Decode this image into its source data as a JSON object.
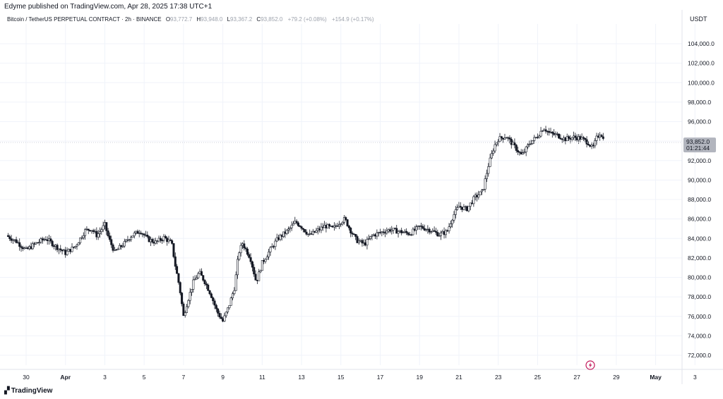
{
  "header": {
    "published": "Edyme published on TradingView.com, Apr 28, 2025 17:38 UTC+1",
    "symbol": "Bitcoin / TetherUS PERPETUAL CONTRACT · 2h · BINANCE",
    "open_label": "O",
    "open": "93,772.7",
    "high_label": "H",
    "high": "93,948.0",
    "low_label": "L",
    "low": "93,367.2",
    "close_label": "C",
    "close": "93,852.0",
    "change": "+79.2 (+0.08%)",
    "change2": "+154.9 (+0.17%)",
    "currency": "USDT"
  },
  "price_tag": {
    "price": "93,852.0",
    "countdown": "01:21:44"
  },
  "footer": {
    "brand": "TradingView",
    "logo_icon": "tradingview-logo-icon"
  },
  "colors": {
    "candle": "#131722",
    "grid": "#f0f3fa",
    "tag_bg": "#b2b5be",
    "lightning": "#c2185b"
  },
  "chart_data": {
    "type": "candlestick",
    "interval": "2h",
    "y_ticks": [
      "72,000.0",
      "74,000.0",
      "76,000.0",
      "78,000.0",
      "80,000.0",
      "82,000.0",
      "84,000.0",
      "86,000.0",
      "88,000.0",
      "90,000.0",
      "92,000.0",
      "94,000.0",
      "96,000.0",
      "98,000.0",
      "100,000.0",
      "102,000.0",
      "104,000.0"
    ],
    "x_ticks": [
      {
        "label": "30",
        "day": 30
      },
      {
        "label": "Apr",
        "day": 32,
        "bold": true
      },
      {
        "label": "3",
        "day": 34
      },
      {
        "label": "5",
        "day": 36
      },
      {
        "label": "7",
        "day": 38
      },
      {
        "label": "9",
        "day": 40
      },
      {
        "label": "11",
        "day": 42
      },
      {
        "label": "13",
        "day": 44
      },
      {
        "label": "15",
        "day": 46
      },
      {
        "label": "17",
        "day": 48
      },
      {
        "label": "19",
        "day": 50
      },
      {
        "label": "21",
        "day": 52
      },
      {
        "label": "23",
        "day": 54
      },
      {
        "label": "25",
        "day": 56
      },
      {
        "label": "27",
        "day": 58
      },
      {
        "label": "29",
        "day": 60
      },
      {
        "label": "May",
        "day": 62,
        "bold": true
      },
      {
        "label": "3",
        "day": 64
      }
    ],
    "ylim": [
      70500,
      105500
    ],
    "current_price": 93852.0,
    "close_path": [
      [
        29.0,
        84300
      ],
      [
        29.5,
        83700
      ],
      [
        30.0,
        82800
      ],
      [
        30.5,
        83500
      ],
      [
        31.0,
        84000
      ],
      [
        31.5,
        83200
      ],
      [
        32.0,
        82500
      ],
      [
        32.5,
        83200
      ],
      [
        33.0,
        84800
      ],
      [
        33.3,
        85000
      ],
      [
        33.6,
        84300
      ],
      [
        34.0,
        85400
      ],
      [
        34.2,
        84000
      ],
      [
        34.5,
        82600
      ],
      [
        35.0,
        83500
      ],
      [
        35.3,
        84200
      ],
      [
        35.8,
        84800
      ],
      [
        36.2,
        83900
      ],
      [
        36.6,
        83600
      ],
      [
        37.0,
        84100
      ],
      [
        37.4,
        83500
      ],
      [
        37.6,
        81000
      ],
      [
        37.8,
        79000
      ],
      [
        38.0,
        76000
      ],
      [
        38.2,
        77500
      ],
      [
        38.5,
        79500
      ],
      [
        38.8,
        80500
      ],
      [
        39.1,
        79500
      ],
      [
        39.4,
        78200
      ],
      [
        39.7,
        76500
      ],
      [
        40.0,
        75500
      ],
      [
        40.3,
        77000
      ],
      [
        40.6,
        79000
      ],
      [
        40.8,
        82500
      ],
      [
        41.0,
        83500
      ],
      [
        41.4,
        82000
      ],
      [
        41.7,
        79500
      ],
      [
        42.0,
        81500
      ],
      [
        42.4,
        82800
      ],
      [
        42.8,
        84000
      ],
      [
        43.3,
        84800
      ],
      [
        43.7,
        85700
      ],
      [
        44.0,
        85200
      ],
      [
        44.4,
        84300
      ],
      [
        44.8,
        84800
      ],
      [
        45.2,
        85300
      ],
      [
        45.6,
        85000
      ],
      [
        45.9,
        85600
      ],
      [
        46.2,
        86000
      ],
      [
        46.5,
        84800
      ],
      [
        46.8,
        83800
      ],
      [
        47.2,
        83400
      ],
      [
        47.6,
        84300
      ],
      [
        48.0,
        84600
      ],
      [
        48.5,
        84900
      ],
      [
        49.0,
        84700
      ],
      [
        49.5,
        84500
      ],
      [
        50.0,
        85200
      ],
      [
        50.5,
        84900
      ],
      [
        51.0,
        84400
      ],
      [
        51.4,
        84700
      ],
      [
        51.7,
        86300
      ],
      [
        52.0,
        87300
      ],
      [
        52.4,
        87000
      ],
      [
        52.8,
        88200
      ],
      [
        53.2,
        88800
      ],
      [
        53.5,
        91500
      ],
      [
        53.8,
        93500
      ],
      [
        54.0,
        94200
      ],
      [
        54.4,
        94500
      ],
      [
        54.8,
        93500
      ],
      [
        55.2,
        92500
      ],
      [
        55.6,
        93800
      ],
      [
        56.0,
        94500
      ],
      [
        56.3,
        95400
      ],
      [
        56.6,
        94800
      ],
      [
        57.0,
        94600
      ],
      [
        57.4,
        94200
      ],
      [
        57.8,
        94400
      ],
      [
        58.2,
        94300
      ],
      [
        58.6,
        93800
      ],
      [
        58.8,
        93200
      ],
      [
        59.0,
        94300
      ],
      [
        59.2,
        94900
      ],
      [
        59.4,
        93852
      ]
    ]
  }
}
